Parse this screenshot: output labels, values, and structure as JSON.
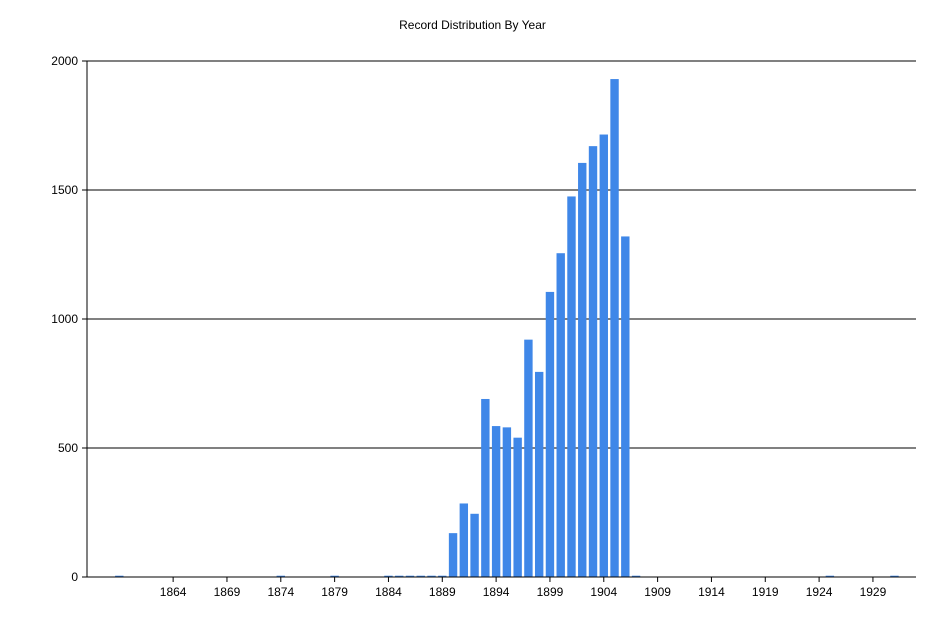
{
  "chart_data": {
    "type": "bar",
    "title": "Record Distribution By Year",
    "xlabel": "",
    "ylabel": "",
    "ylim": [
      0,
      2000
    ],
    "xlim": [
      1856,
      1933
    ],
    "grid": "horizontal",
    "legend": "none",
    "bar_color": "#3F87E8",
    "y_ticks": [
      0,
      500,
      1000,
      1500,
      2000
    ],
    "x_ticks": [
      1864,
      1869,
      1874,
      1879,
      1884,
      1889,
      1894,
      1899,
      1904,
      1909,
      1914,
      1919,
      1924,
      1929
    ],
    "x": [
      1859,
      1874,
      1879,
      1884,
      1885,
      1886,
      1887,
      1888,
      1889,
      1890,
      1891,
      1892,
      1893,
      1894,
      1895,
      1896,
      1897,
      1898,
      1899,
      1900,
      1901,
      1902,
      1903,
      1904,
      1905,
      1906,
      1907,
      1925,
      1931
    ],
    "values": [
      5,
      5,
      5,
      5,
      5,
      5,
      5,
      5,
      5,
      170,
      285,
      245,
      690,
      585,
      580,
      540,
      920,
      795,
      1105,
      1255,
      1475,
      1605,
      1670,
      1715,
      1930,
      1320,
      5,
      5,
      5
    ]
  }
}
